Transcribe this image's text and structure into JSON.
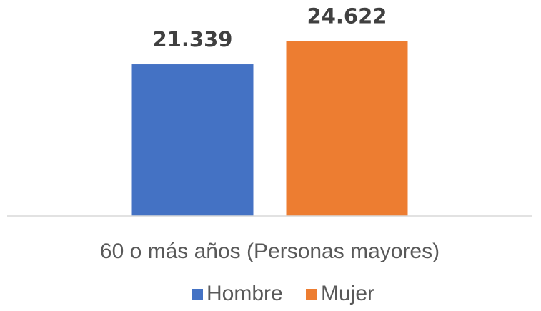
{
  "chart_data": {
    "type": "bar",
    "categories": [
      "60 o más años (Personas mayores)"
    ],
    "series": [
      {
        "name": "Hombre",
        "color": "#4472c4",
        "values": [
          21339
        ],
        "value_labels": [
          "21.339"
        ]
      },
      {
        "name": "Mujer",
        "color": "#ed7d31",
        "values": [
          24622
        ],
        "value_labels": [
          "24.622"
        ]
      }
    ],
    "ylim": [
      0,
      30000
    ],
    "legend": "bottom"
  }
}
